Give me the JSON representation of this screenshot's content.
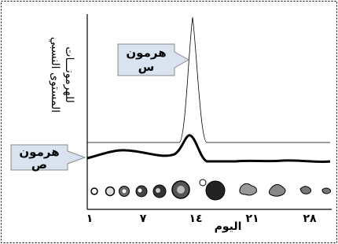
{
  "y_axis_label": {
    "lines": [
      "المستوى النسبي",
      "للهرمونـــات"
    ]
  },
  "x_axis": {
    "title": "اليوم",
    "ticks": [
      "١",
      "٧",
      "١٤",
      "٢١",
      "٢٨"
    ]
  },
  "callouts": [
    {
      "lines": [
        "هرمون",
        "س"
      ]
    },
    {
      "lines": [
        "هرمون",
        "ص"
      ]
    }
  ]
}
